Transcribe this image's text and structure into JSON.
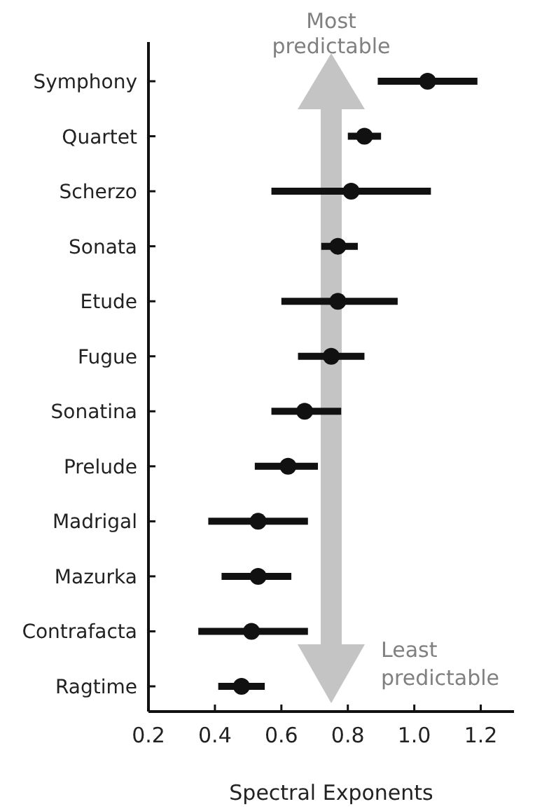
{
  "chart_data": {
    "type": "scatter",
    "orientation": "horizontal",
    "xlabel": "Spectral Exponents",
    "categories": [
      "Symphony",
      "Quartet",
      "Scherzo",
      "Sonata",
      "Etude",
      "Fugue",
      "Sonatina",
      "Prelude",
      "Madrigal",
      "Mazurka",
      "Contrafacta",
      "Ragtime"
    ],
    "values": [
      1.04,
      0.85,
      0.81,
      0.77,
      0.77,
      0.75,
      0.67,
      0.62,
      0.53,
      0.53,
      0.51,
      0.48
    ],
    "errors": [
      [
        0.89,
        1.19
      ],
      [
        0.8,
        0.9
      ],
      [
        0.57,
        1.05
      ],
      [
        0.72,
        0.83
      ],
      [
        0.6,
        0.95
      ],
      [
        0.65,
        0.85
      ],
      [
        0.57,
        0.78
      ],
      [
        0.52,
        0.71
      ],
      [
        0.38,
        0.68
      ],
      [
        0.42,
        0.63
      ],
      [
        0.35,
        0.68
      ],
      [
        0.41,
        0.55
      ]
    ],
    "color": "#111111",
    "marker": "circle",
    "xlim": [
      0.2,
      1.3
    ],
    "xticks": [
      0.2,
      0.4,
      0.6,
      0.8,
      {
        "value": 1.0,
        "label": "1.0"
      },
      1.2
    ],
    "annotations": [
      "Most predictable",
      "Least predictable"
    ],
    "grid": false
  }
}
